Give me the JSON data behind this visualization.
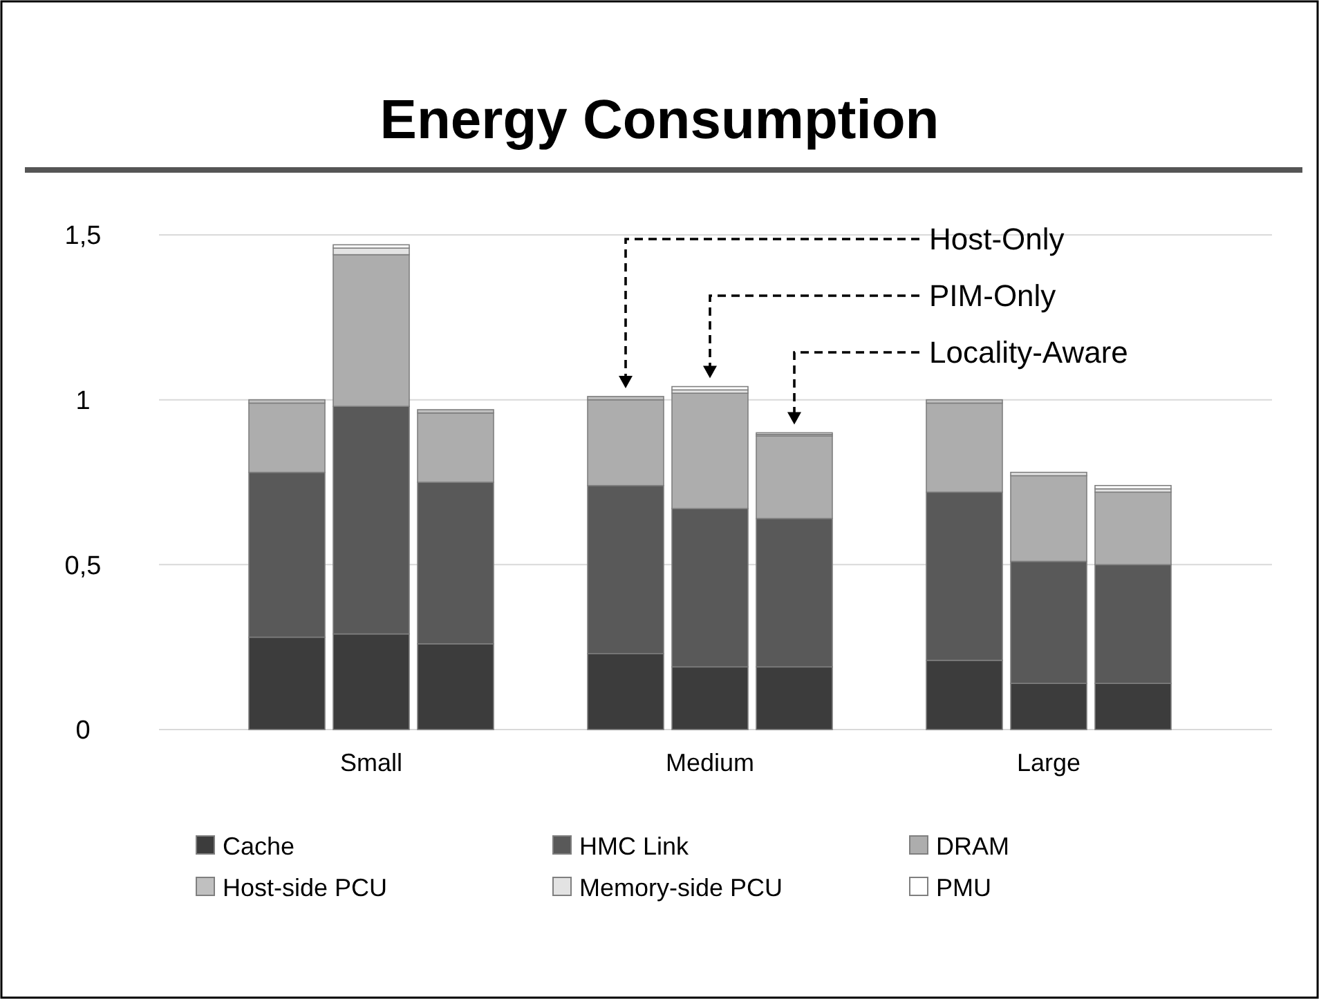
{
  "chart_data": {
    "type": "bar",
    "title": "Energy Consumption",
    "stacked": true,
    "categories": [
      null,
      "Small",
      null,
      null,
      "Medium",
      null,
      null,
      "Large",
      null
    ],
    "series": [
      {
        "name": "Cache",
        "color": "#3c3c3c",
        "values": [
          0.28,
          0.29,
          0.26,
          0.23,
          0.19,
          0.19,
          0.21,
          0.14,
          0.14
        ]
      },
      {
        "name": "HMC Link",
        "color": "#595959",
        "values": [
          0.5,
          0.69,
          0.49,
          0.51,
          0.48,
          0.45,
          0.51,
          0.37,
          0.36
        ]
      },
      {
        "name": "DRAM",
        "color": "#adadad",
        "values": [
          0.21,
          0.46,
          0.21,
          0.26,
          0.35,
          0.25,
          0.27,
          0.26,
          0.22
        ]
      },
      {
        "name": "Host-side PCU",
        "color": "#c0c0c0",
        "values": [
          0.01,
          0,
          0.01,
          0.01,
          0,
          0.005,
          0.01,
          0,
          0
        ]
      },
      {
        "name": "Memory-side PCU",
        "color": "#e3e3e3",
        "values": [
          0,
          0.02,
          0,
          0,
          0.01,
          0.005,
          0,
          0.01,
          0.01
        ]
      },
      {
        "name": "PMU",
        "color": "#ffffff",
        "values": [
          0,
          0.01,
          0,
          0,
          0.01,
          0,
          0,
          0,
          0.01
        ]
      }
    ],
    "ylim": [
      0,
      1.5
    ],
    "yticks": [
      0,
      {
        "value": 0.5,
        "label": "0,5"
      },
      1,
      {
        "value": 1.5,
        "label": "1,5"
      }
    ],
    "grid": "y",
    "legend": "bottom",
    "annotations": [
      "Host-Only",
      "PIM-Only",
      "Locality-Aware"
    ]
  }
}
